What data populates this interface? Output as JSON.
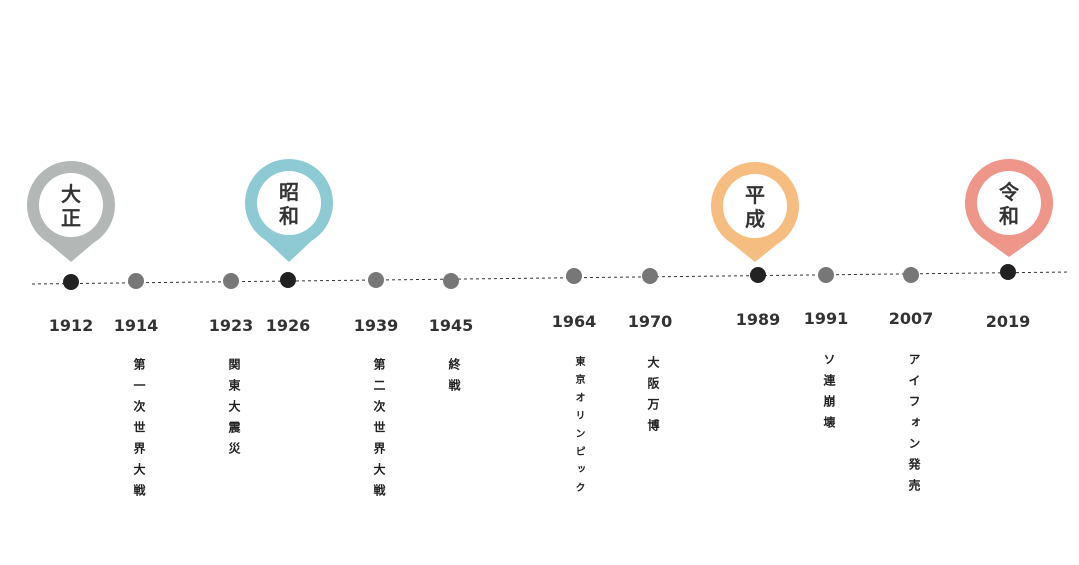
{
  "timeline": {
    "eras": [
      {
        "name": "大正",
        "color": "#b3b8b6"
      },
      {
        "name": "昭和",
        "color": "#8ecad3"
      },
      {
        "name": "平成",
        "color": "#f5bd80"
      },
      {
        "name": "令和",
        "color": "#ee968a"
      }
    ],
    "years": [
      {
        "year": "1912",
        "event": ""
      },
      {
        "year": "1914",
        "event": "第一次世界大戦"
      },
      {
        "year": "1923",
        "event": "関東大震災"
      },
      {
        "year": "1926",
        "event": ""
      },
      {
        "year": "1939",
        "event": "第二次世界大戦"
      },
      {
        "year": "1945",
        "event": "終戦"
      },
      {
        "year": "1964",
        "event": "東京オリンピック"
      },
      {
        "year": "1970",
        "event": "大阪万博"
      },
      {
        "year": "1989",
        "event": ""
      },
      {
        "year": "1991",
        "event": "ソ連崩壊"
      },
      {
        "year": "2007",
        "event": "アイフォン発売"
      },
      {
        "year": "2019",
        "event": ""
      }
    ],
    "colors": {
      "line": "#333333",
      "major_dot": "#222222",
      "minor_dot": "#777777",
      "pin_text": "#333333"
    }
  }
}
